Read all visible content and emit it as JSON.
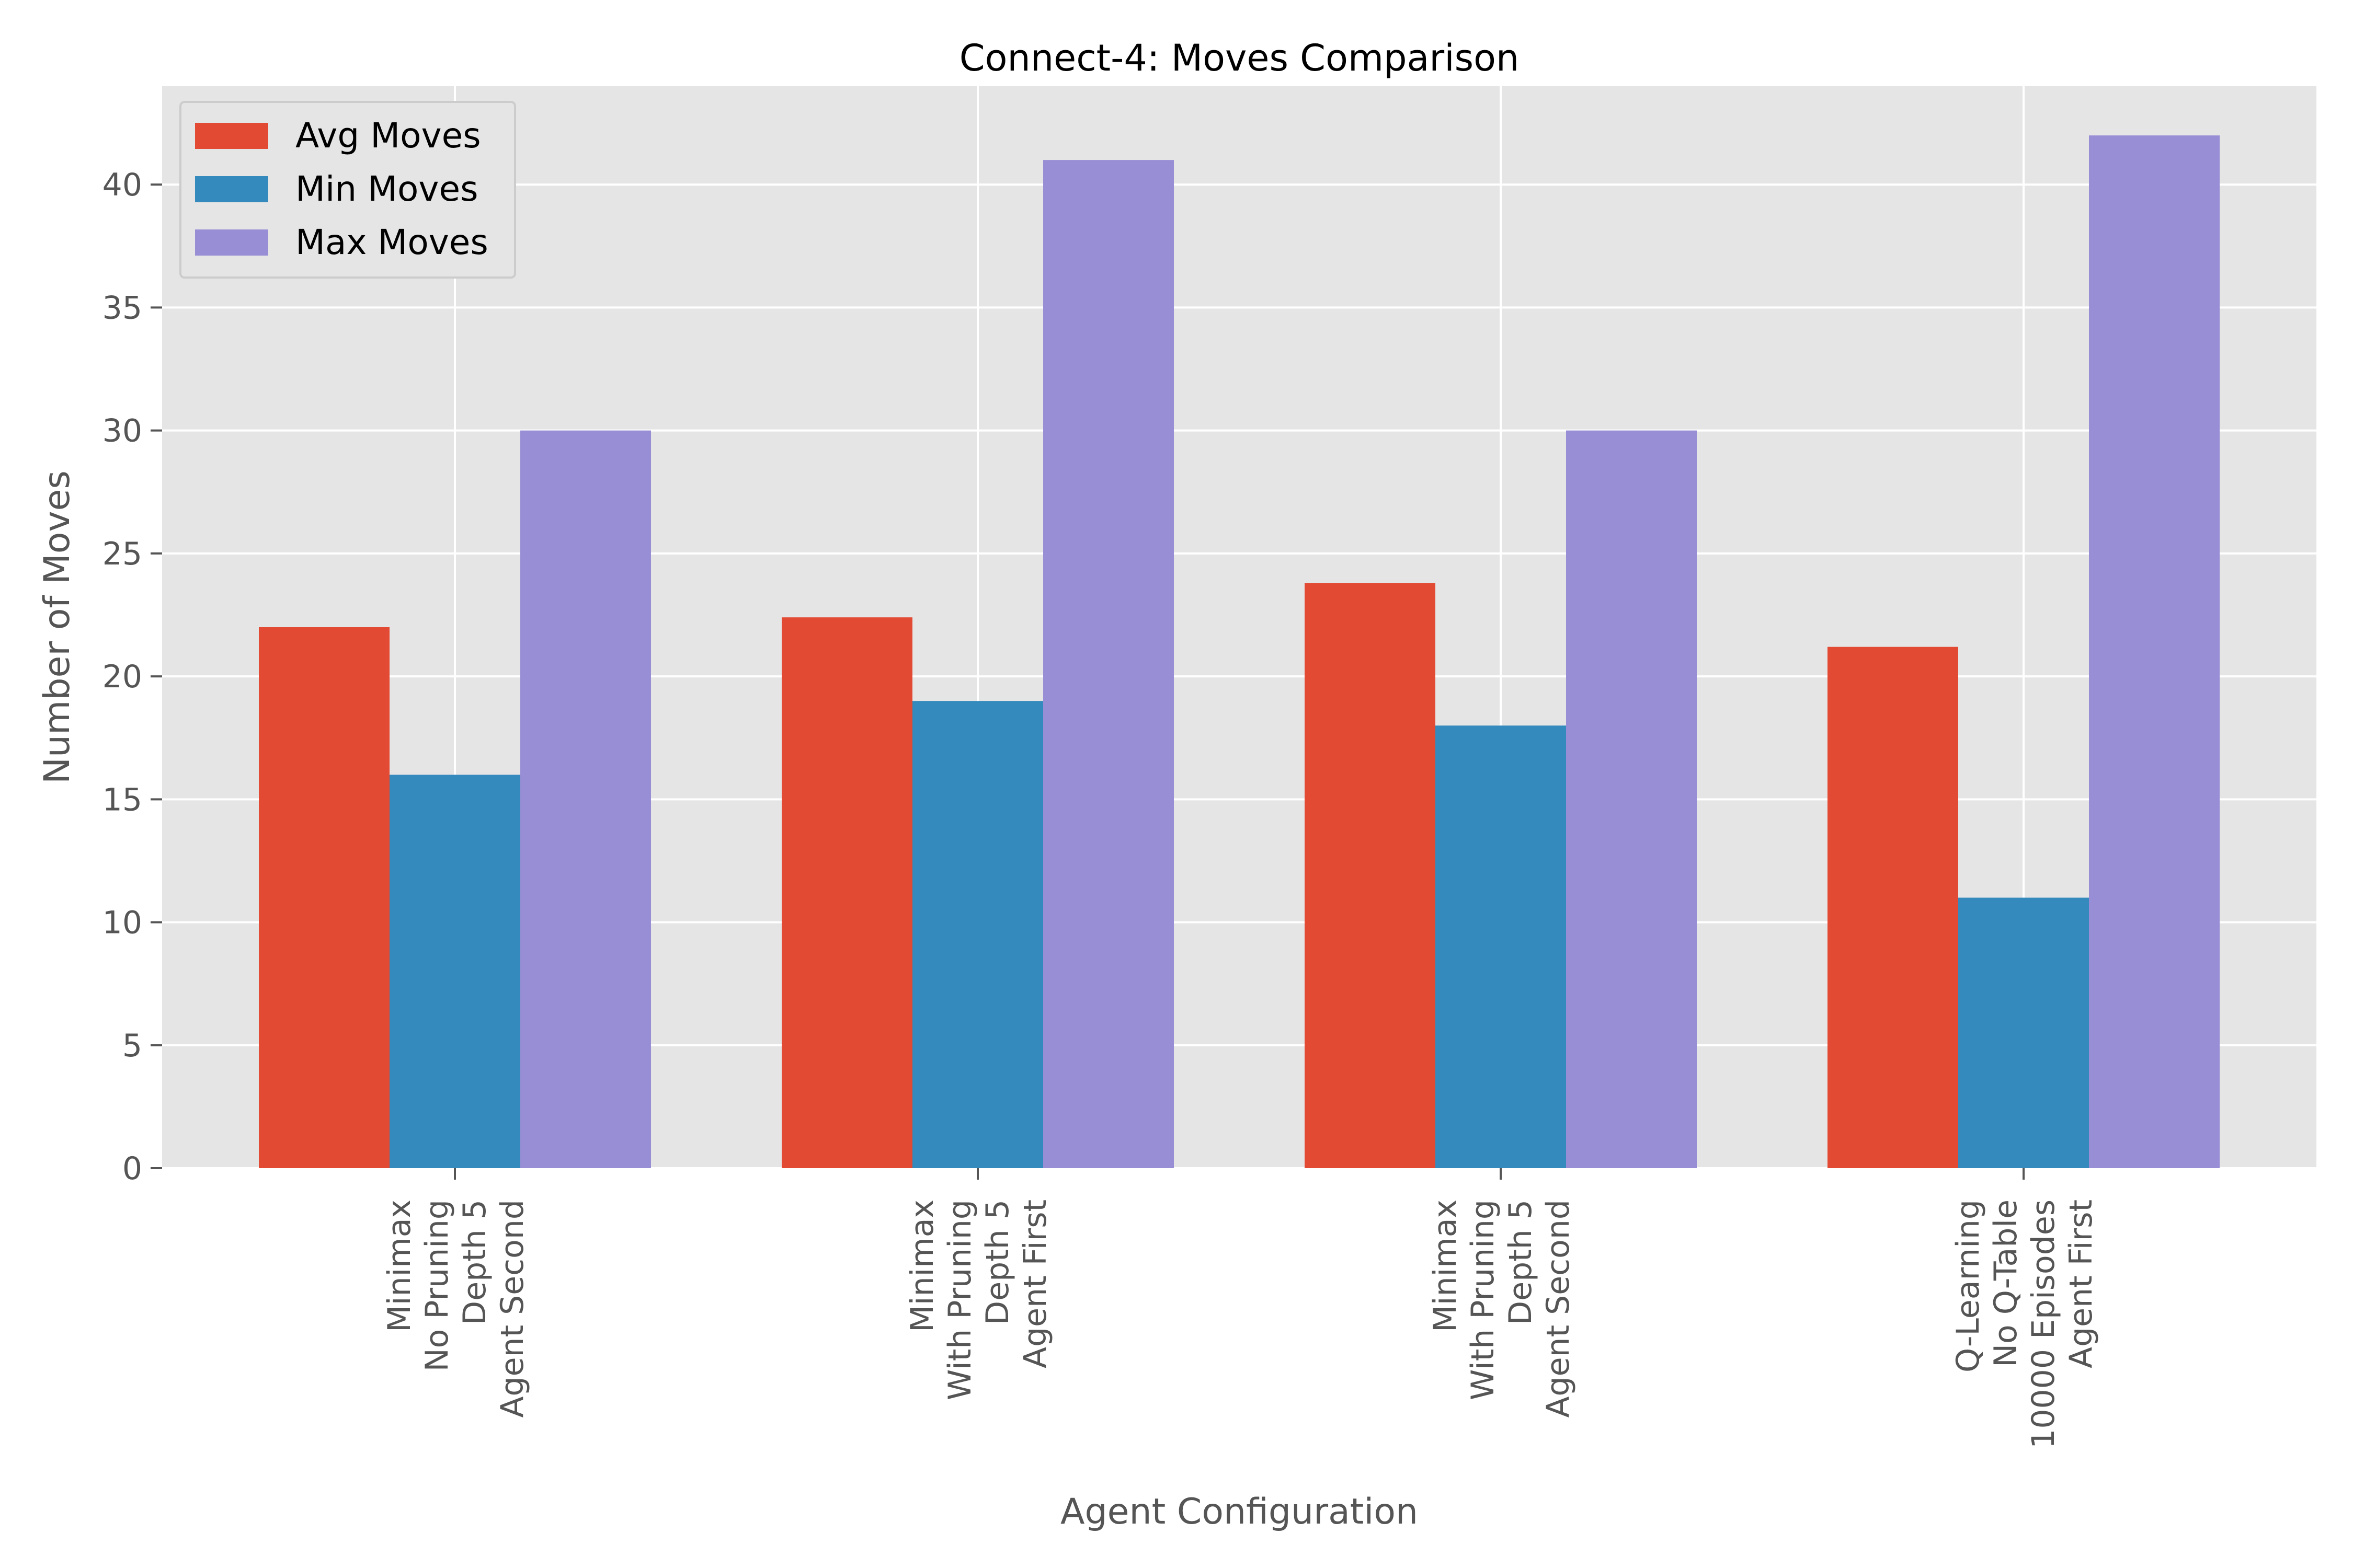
{
  "chart_data": {
    "type": "bar",
    "title": "Connect-4: Moves Comparison",
    "xlabel": "Agent Configuration",
    "ylabel": "Number of Moves",
    "ylim": [
      0,
      44
    ],
    "yticks": [
      0,
      5,
      10,
      15,
      20,
      25,
      30,
      35,
      40
    ],
    "grid": true,
    "legend_position": "top-left",
    "categories": [
      [
        "Minimax",
        "No Pruning",
        "Depth 5",
        "Agent Second"
      ],
      [
        "Minimax",
        "With Pruning",
        "Depth 5",
        "Agent First"
      ],
      [
        "Minimax",
        "With Pruning",
        "Depth 5",
        "Agent Second"
      ],
      [
        "Q-Learning",
        "No Q-Table",
        "10000 Episodes",
        "Agent First"
      ]
    ],
    "series": [
      {
        "name": "Avg Moves",
        "color": "#E24A33",
        "values": [
          22.0,
          22.4,
          23.8,
          21.2
        ]
      },
      {
        "name": "Min Moves",
        "color": "#348ABD",
        "values": [
          16,
          19,
          18,
          11
        ]
      },
      {
        "name": "Max Moves",
        "color": "#988ED5",
        "values": [
          30,
          41,
          30,
          42
        ]
      }
    ]
  }
}
